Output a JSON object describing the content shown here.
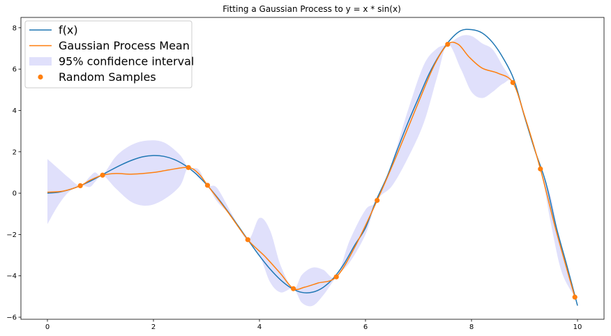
{
  "chart_data": {
    "type": "line",
    "title": "Fitting a Gaussian Process to y = x * sin(x)",
    "xlabel": "",
    "ylabel": "",
    "xlim": [
      -0.5,
      10.5
    ],
    "ylim": [
      -6.1,
      8.5
    ],
    "x_ticks": [
      0,
      2,
      4,
      6,
      8,
      10
    ],
    "y_ticks": [
      -6,
      -4,
      -2,
      0,
      2,
      4,
      6,
      8
    ],
    "grid": false,
    "legend_position": "top-left",
    "colors": {
      "function": "#1f77b4",
      "gp_mean": "#ff7f0e",
      "confidence": "#e0e0fb",
      "samples": "#ff7f0e"
    },
    "legend": [
      {
        "label": "f(x)",
        "kind": "line",
        "color": "#1f77b4"
      },
      {
        "label": "Gaussian Process Mean",
        "kind": "line",
        "color": "#ff7f0e"
      },
      {
        "label": "95% confidence interval",
        "kind": "band",
        "color": "#e0e0fb"
      },
      {
        "label": "Random Samples",
        "kind": "point",
        "color": "#ff7f0e"
      }
    ],
    "series": [
      {
        "name": "f(x)",
        "x": [
          0,
          0.2,
          0.4,
          0.6,
          0.8,
          1.0,
          1.2,
          1.4,
          1.6,
          1.8,
          2.0,
          2.2,
          2.4,
          2.6,
          2.8,
          3.0,
          3.2,
          3.4,
          3.6,
          3.8,
          4.0,
          4.2,
          4.4,
          4.6,
          4.8,
          5.0,
          5.2,
          5.4,
          5.6,
          5.8,
          6.0,
          6.2,
          6.4,
          6.6,
          6.8,
          7.0,
          7.2,
          7.4,
          7.6,
          7.8,
          8.0,
          8.2,
          8.4,
          8.6,
          8.8,
          9.0,
          9.2,
          9.4,
          9.6,
          9.8,
          10.0
        ],
        "y": [
          0.0,
          0.04,
          0.16,
          0.34,
          0.57,
          0.84,
          1.12,
          1.38,
          1.6,
          1.76,
          1.82,
          1.78,
          1.62,
          1.34,
          0.94,
          0.42,
          -0.19,
          -0.87,
          -1.59,
          -2.32,
          -3.03,
          -3.67,
          -4.2,
          -4.59,
          -4.8,
          -4.79,
          -4.56,
          -4.1,
          -3.4,
          -2.5,
          -1.68,
          -0.36,
          0.75,
          2.1,
          3.4,
          4.6,
          5.77,
          6.7,
          7.42,
          7.86,
          7.91,
          7.75,
          7.28,
          6.52,
          5.49,
          3.71,
          2.04,
          0.53,
          -1.65,
          -3.51,
          -5.44
        ]
      },
      {
        "name": "Gaussian Process Mean",
        "x": [
          0,
          0.3,
          0.62,
          0.8,
          1.04,
          1.3,
          1.6,
          2.0,
          2.3,
          2.66,
          2.85,
          3.02,
          3.4,
          3.78,
          4.1,
          4.4,
          4.64,
          4.85,
          5.1,
          5.45,
          5.8,
          6.22,
          6.6,
          7.0,
          7.3,
          7.55,
          7.75,
          7.95,
          8.2,
          8.5,
          8.78,
          9.0,
          9.3,
          9.6,
          9.95
        ],
        "y": [
          0.05,
          0.1,
          0.36,
          0.62,
          0.87,
          0.95,
          0.92,
          1.0,
          1.13,
          1.24,
          0.95,
          0.38,
          -0.9,
          -2.25,
          -3.05,
          -3.9,
          -4.62,
          -4.55,
          -4.35,
          -4.05,
          -2.6,
          -0.35,
          1.9,
          4.4,
          6.2,
          7.2,
          7.2,
          6.6,
          6.05,
          5.8,
          5.35,
          3.75,
          1.17,
          -1.85,
          -5.03
        ]
      },
      {
        "name": "95% confidence interval",
        "x": [
          0,
          0.2,
          0.4,
          0.62,
          0.8,
          0.9,
          1.04,
          1.3,
          1.6,
          1.9,
          2.2,
          2.5,
          2.66,
          2.85,
          3.02,
          3.2,
          3.5,
          3.78,
          4.0,
          4.2,
          4.4,
          4.64,
          4.8,
          5.0,
          5.2,
          5.45,
          5.7,
          6.0,
          6.22,
          6.5,
          6.8,
          7.1,
          7.35,
          7.55,
          7.8,
          8.0,
          8.2,
          8.4,
          8.6,
          8.78,
          9.0,
          9.3,
          9.5,
          9.7,
          9.95
        ],
        "y_upper": [
          1.65,
          1.2,
          0.75,
          0.36,
          0.8,
          1.0,
          0.87,
          1.8,
          2.35,
          2.55,
          2.45,
          1.85,
          1.24,
          1.15,
          0.38,
          0.25,
          -1.1,
          -2.25,
          -1.2,
          -1.8,
          -3.5,
          -4.62,
          -3.95,
          -3.6,
          -3.7,
          -4.05,
          -2.3,
          -0.8,
          -0.35,
          1.5,
          4.0,
          6.2,
          7.0,
          7.2,
          7.6,
          7.6,
          7.25,
          6.95,
          6.1,
          5.35,
          3.8,
          1.17,
          -0.2,
          -2.8,
          -5.03
        ],
        "y_lower": [
          -1.5,
          -0.6,
          0.05,
          0.36,
          0.3,
          0.55,
          0.87,
          0.2,
          -0.45,
          -0.6,
          -0.3,
          0.35,
          1.24,
          0.75,
          0.38,
          -0.4,
          -1.2,
          -2.25,
          -3.0,
          -4.3,
          -4.8,
          -4.62,
          -5.3,
          -5.45,
          -4.95,
          -4.05,
          -3.35,
          -2.0,
          -0.35,
          0.35,
          1.7,
          3.4,
          5.6,
          7.2,
          6.0,
          4.9,
          4.6,
          4.9,
          5.3,
          5.35,
          3.6,
          1.17,
          -1.5,
          -3.8,
          -5.03
        ]
      },
      {
        "name": "Random Samples",
        "x": [
          0.62,
          1.04,
          2.66,
          3.02,
          3.78,
          4.64,
          5.45,
          6.22,
          7.55,
          8.78,
          9.3,
          9.95
        ],
        "y": [
          0.36,
          0.87,
          1.24,
          0.38,
          -2.25,
          -4.62,
          -4.05,
          -0.35,
          7.2,
          5.35,
          1.17,
          -5.03
        ]
      }
    ]
  }
}
